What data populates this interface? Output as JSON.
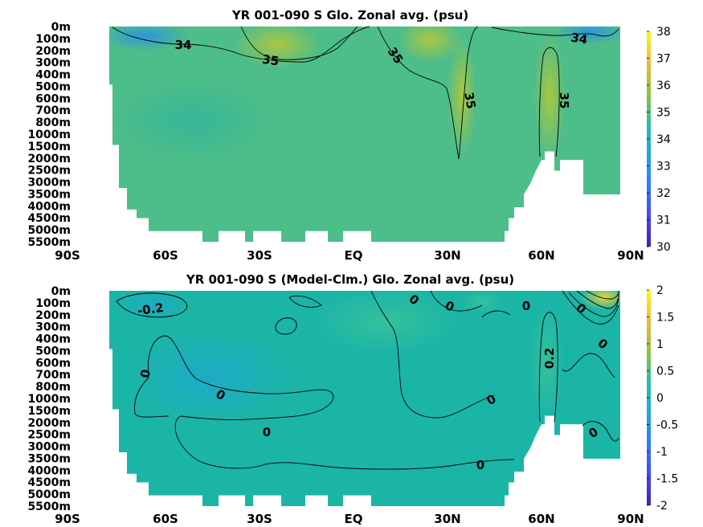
{
  "chart_data": [
    {
      "type": "heatmap",
      "title": "YR 001-090 S Glo. Zonal avg. (psu)",
      "x_ticks": [
        "90S",
        "60S",
        "30S",
        "EQ",
        "30N",
        "60N",
        "90N"
      ],
      "y_ticks": [
        "0m",
        "100m",
        "200m",
        "300m",
        "400m",
        "500m",
        "600m",
        "700m",
        "800m",
        "1000m",
        "1500m",
        "2000m",
        "2500m",
        "3000m",
        "3500m",
        "4000m",
        "4500m",
        "5000m",
        "5500m"
      ],
      "colorbar": {
        "min": 30,
        "max": 38,
        "ticks": [
          "30",
          "31",
          "32",
          "33",
          "34",
          "35",
          "36",
          "37",
          "38"
        ]
      },
      "contour_labels": [
        "34",
        "35",
        "35",
        "35",
        "35",
        "34"
      ]
    },
    {
      "type": "heatmap",
      "title": "YR 001-090 S (Model-Clm.) Glo. Zonal avg. (psu)",
      "x_ticks": [
        "90S",
        "60S",
        "30S",
        "EQ",
        "30N",
        "60N",
        "90N"
      ],
      "y_ticks": [
        "0m",
        "100m",
        "200m",
        "300m",
        "400m",
        "500m",
        "600m",
        "700m",
        "800m",
        "1000m",
        "1500m",
        "2000m",
        "2500m",
        "3000m",
        "3500m",
        "4000m",
        "4500m",
        "5000m",
        "5500m"
      ],
      "colorbar": {
        "min": -2,
        "max": 2,
        "ticks": [
          "-2",
          "-1.5",
          "-1",
          "-0.5",
          "0",
          "0.5",
          "1",
          "1.5",
          "2"
        ]
      },
      "contour_labels": [
        "-0.2",
        "0",
        "0",
        "0",
        "0",
        "0",
        "0",
        "0",
        "0",
        "0.2",
        "0",
        "0",
        "0"
      ]
    }
  ],
  "colors": {
    "top_base": "#4dbd8a",
    "bottom_base": "#1bb5a6",
    "viridis": [
      "#3e26a8",
      "#4743f8",
      "#2f7bfe",
      "#1ca9df",
      "#25c0a8",
      "#8cc43e",
      "#f2b93c",
      "#f9fb15"
    ]
  }
}
